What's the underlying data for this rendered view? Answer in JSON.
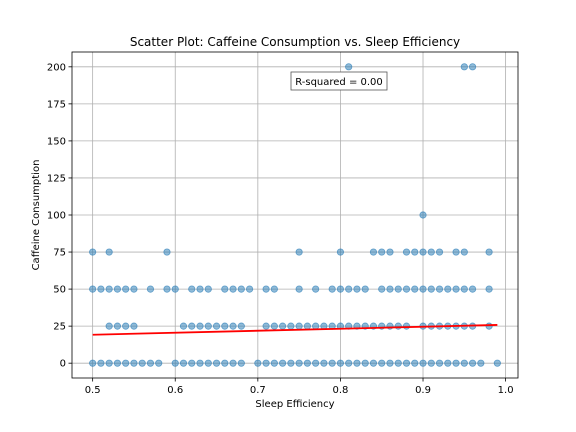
{
  "chart_data": {
    "type": "scatter",
    "title": "Scatter Plot: Caffeine Consumption vs. Sleep Efficiency",
    "xlabel": "Sleep Efficiency",
    "ylabel": "Caffeine Consumption",
    "xlim": [
      0.475,
      1.015
    ],
    "ylim": [
      -10,
      210
    ],
    "xticks": [
      0.5,
      0.6,
      0.7,
      0.8,
      0.9,
      1.0
    ],
    "xtick_labels": [
      "0.5",
      "0.6",
      "0.7",
      "0.8",
      "0.9",
      "1.0"
    ],
    "yticks": [
      0,
      25,
      50,
      75,
      100,
      125,
      150,
      175,
      200
    ],
    "ytick_labels": [
      "0",
      "25",
      "50",
      "75",
      "100",
      "125",
      "150",
      "175",
      "200"
    ],
    "grid": true,
    "annotation": "R-squared = 0.00",
    "point_color": "#1f77b4",
    "line_color": "#ff0000",
    "points": [
      [
        0.5,
        0
      ],
      [
        0.51,
        0
      ],
      [
        0.52,
        0
      ],
      [
        0.53,
        0
      ],
      [
        0.54,
        0
      ],
      [
        0.55,
        0
      ],
      [
        0.56,
        0
      ],
      [
        0.57,
        0
      ],
      [
        0.58,
        0
      ],
      [
        0.6,
        0
      ],
      [
        0.61,
        0
      ],
      [
        0.62,
        0
      ],
      [
        0.63,
        0
      ],
      [
        0.64,
        0
      ],
      [
        0.65,
        0
      ],
      [
        0.66,
        0
      ],
      [
        0.67,
        0
      ],
      [
        0.68,
        0
      ],
      [
        0.7,
        0
      ],
      [
        0.71,
        0
      ],
      [
        0.72,
        0
      ],
      [
        0.73,
        0
      ],
      [
        0.74,
        0
      ],
      [
        0.75,
        0
      ],
      [
        0.76,
        0
      ],
      [
        0.77,
        0
      ],
      [
        0.78,
        0
      ],
      [
        0.79,
        0
      ],
      [
        0.8,
        0
      ],
      [
        0.81,
        0
      ],
      [
        0.82,
        0
      ],
      [
        0.83,
        0
      ],
      [
        0.84,
        0
      ],
      [
        0.85,
        0
      ],
      [
        0.86,
        0
      ],
      [
        0.87,
        0
      ],
      [
        0.88,
        0
      ],
      [
        0.89,
        0
      ],
      [
        0.9,
        0
      ],
      [
        0.91,
        0
      ],
      [
        0.92,
        0
      ],
      [
        0.93,
        0
      ],
      [
        0.94,
        0
      ],
      [
        0.95,
        0
      ],
      [
        0.96,
        0
      ],
      [
        0.97,
        0
      ],
      [
        0.99,
        0
      ],
      [
        0.52,
        25
      ],
      [
        0.53,
        25
      ],
      [
        0.54,
        25
      ],
      [
        0.55,
        25
      ],
      [
        0.61,
        25
      ],
      [
        0.62,
        25
      ],
      [
        0.63,
        25
      ],
      [
        0.64,
        25
      ],
      [
        0.65,
        25
      ],
      [
        0.66,
        25
      ],
      [
        0.67,
        25
      ],
      [
        0.68,
        25
      ],
      [
        0.71,
        25
      ],
      [
        0.72,
        25
      ],
      [
        0.73,
        25
      ],
      [
        0.74,
        25
      ],
      [
        0.75,
        25
      ],
      [
        0.76,
        25
      ],
      [
        0.77,
        25
      ],
      [
        0.78,
        25
      ],
      [
        0.79,
        25
      ],
      [
        0.8,
        25
      ],
      [
        0.81,
        25
      ],
      [
        0.82,
        25
      ],
      [
        0.83,
        25
      ],
      [
        0.84,
        25
      ],
      [
        0.85,
        25
      ],
      [
        0.86,
        25
      ],
      [
        0.87,
        25
      ],
      [
        0.88,
        25
      ],
      [
        0.9,
        25
      ],
      [
        0.91,
        25
      ],
      [
        0.92,
        25
      ],
      [
        0.93,
        25
      ],
      [
        0.94,
        25
      ],
      [
        0.95,
        25
      ],
      [
        0.96,
        25
      ],
      [
        0.98,
        25
      ],
      [
        0.5,
        50
      ],
      [
        0.51,
        50
      ],
      [
        0.52,
        50
      ],
      [
        0.53,
        50
      ],
      [
        0.54,
        50
      ],
      [
        0.55,
        50
      ],
      [
        0.57,
        50
      ],
      [
        0.59,
        50
      ],
      [
        0.6,
        50
      ],
      [
        0.62,
        50
      ],
      [
        0.63,
        50
      ],
      [
        0.64,
        50
      ],
      [
        0.66,
        50
      ],
      [
        0.67,
        50
      ],
      [
        0.68,
        50
      ],
      [
        0.69,
        50
      ],
      [
        0.71,
        50
      ],
      [
        0.72,
        50
      ],
      [
        0.75,
        50
      ],
      [
        0.77,
        50
      ],
      [
        0.79,
        50
      ],
      [
        0.8,
        50
      ],
      [
        0.81,
        50
      ],
      [
        0.82,
        50
      ],
      [
        0.83,
        50
      ],
      [
        0.85,
        50
      ],
      [
        0.86,
        50
      ],
      [
        0.87,
        50
      ],
      [
        0.88,
        50
      ],
      [
        0.89,
        50
      ],
      [
        0.9,
        50
      ],
      [
        0.91,
        50
      ],
      [
        0.92,
        50
      ],
      [
        0.93,
        50
      ],
      [
        0.94,
        50
      ],
      [
        0.95,
        50
      ],
      [
        0.96,
        50
      ],
      [
        0.98,
        50
      ],
      [
        0.5,
        75
      ],
      [
        0.52,
        75
      ],
      [
        0.59,
        75
      ],
      [
        0.75,
        75
      ],
      [
        0.8,
        75
      ],
      [
        0.84,
        75
      ],
      [
        0.85,
        75
      ],
      [
        0.86,
        75
      ],
      [
        0.88,
        75
      ],
      [
        0.89,
        75
      ],
      [
        0.9,
        75
      ],
      [
        0.91,
        75
      ],
      [
        0.92,
        75
      ],
      [
        0.94,
        75
      ],
      [
        0.95,
        75
      ],
      [
        0.98,
        75
      ],
      [
        0.9,
        100
      ],
      [
        0.81,
        200
      ],
      [
        0.95,
        200
      ],
      [
        0.96,
        200
      ]
    ],
    "fit_line": {
      "x": [
        0.5,
        0.99
      ],
      "y": [
        19.2,
        25.8
      ]
    }
  }
}
